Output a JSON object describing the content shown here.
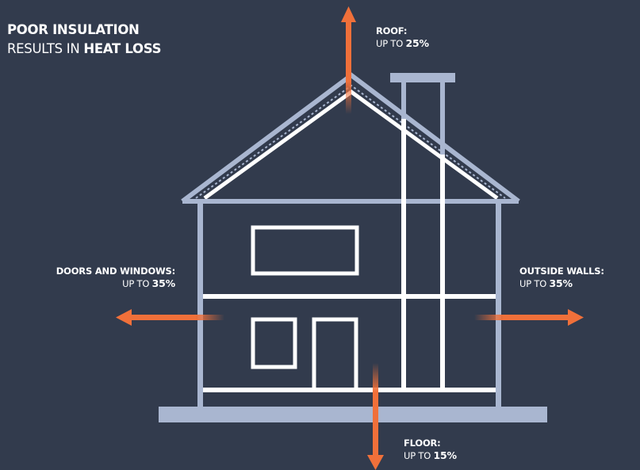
{
  "title": {
    "line1": "POOR INSULATION",
    "line2_prefix": "RESULTS IN ",
    "line2_bold": "HEAT LOSS"
  },
  "callouts": {
    "roof": {
      "heading": "ROOF:",
      "prefix": "UP TO ",
      "value": "25%"
    },
    "doors_windows": {
      "heading": "DOORS AND WINDOWS:",
      "prefix": "UP TO ",
      "value": "35%"
    },
    "outside_walls": {
      "heading": "OUTSIDE WALLS:",
      "prefix": "UP TO ",
      "value": "35%"
    },
    "floor": {
      "heading": "FLOOR:",
      "prefix": "UP TO ",
      "value": "15%"
    }
  },
  "colors": {
    "background": "#323b4d",
    "house_outline": "#a9b6d0",
    "inner_lines": "#ffffff",
    "arrow": "#f0703a"
  }
}
